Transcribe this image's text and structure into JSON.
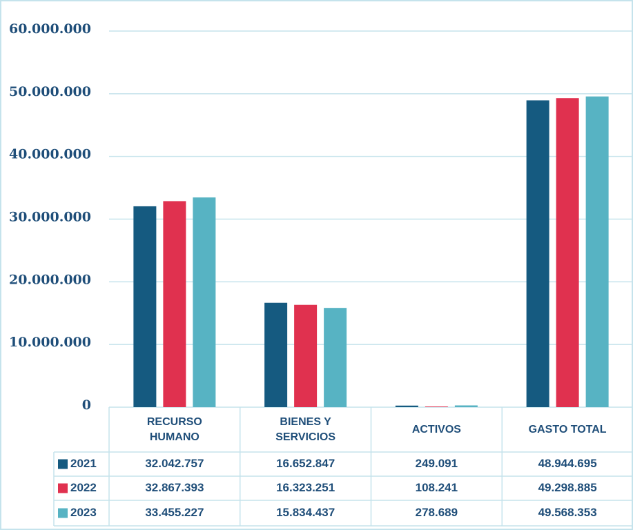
{
  "chart_data": {
    "type": "bar",
    "categories": [
      "RECURSO HUMANO",
      "BIENES Y SERVICIOS",
      "ACTIVOS",
      "GASTO TOTAL"
    ],
    "series": [
      {
        "name": "2021",
        "color": "#155a80",
        "values": [
          32042757,
          16652847,
          249091,
          48944695
        ],
        "value_labels": [
          "32.042.757",
          "16.652.847",
          "249.091",
          "48.944.695"
        ]
      },
      {
        "name": "2022",
        "color": "#e0314f",
        "values": [
          32867393,
          16323251,
          108241,
          49298885
        ],
        "value_labels": [
          "32.867.393",
          "16.323.251",
          "108.241",
          "49.298.885"
        ]
      },
      {
        "name": "2023",
        "color": "#57b3c3",
        "values": [
          33455227,
          15834437,
          278689,
          49568353
        ],
        "value_labels": [
          "33.455.227",
          "15.834.437",
          "278.689",
          "49.568.353"
        ]
      }
    ],
    "ylim": [
      0,
      60000000
    ],
    "yticks": [
      0,
      {
        "value": 10000000,
        "label": "10.000.000"
      },
      {
        "value": 20000000,
        "label": "20.000.000"
      },
      {
        "value": 30000000,
        "label": "30.000.000"
      },
      {
        "value": 40000000,
        "label": "40.000.000"
      },
      {
        "value": 50000000,
        "label": "50.000.000"
      },
      {
        "value": 60000000,
        "label": "60.000.000"
      }
    ],
    "grid": true
  }
}
